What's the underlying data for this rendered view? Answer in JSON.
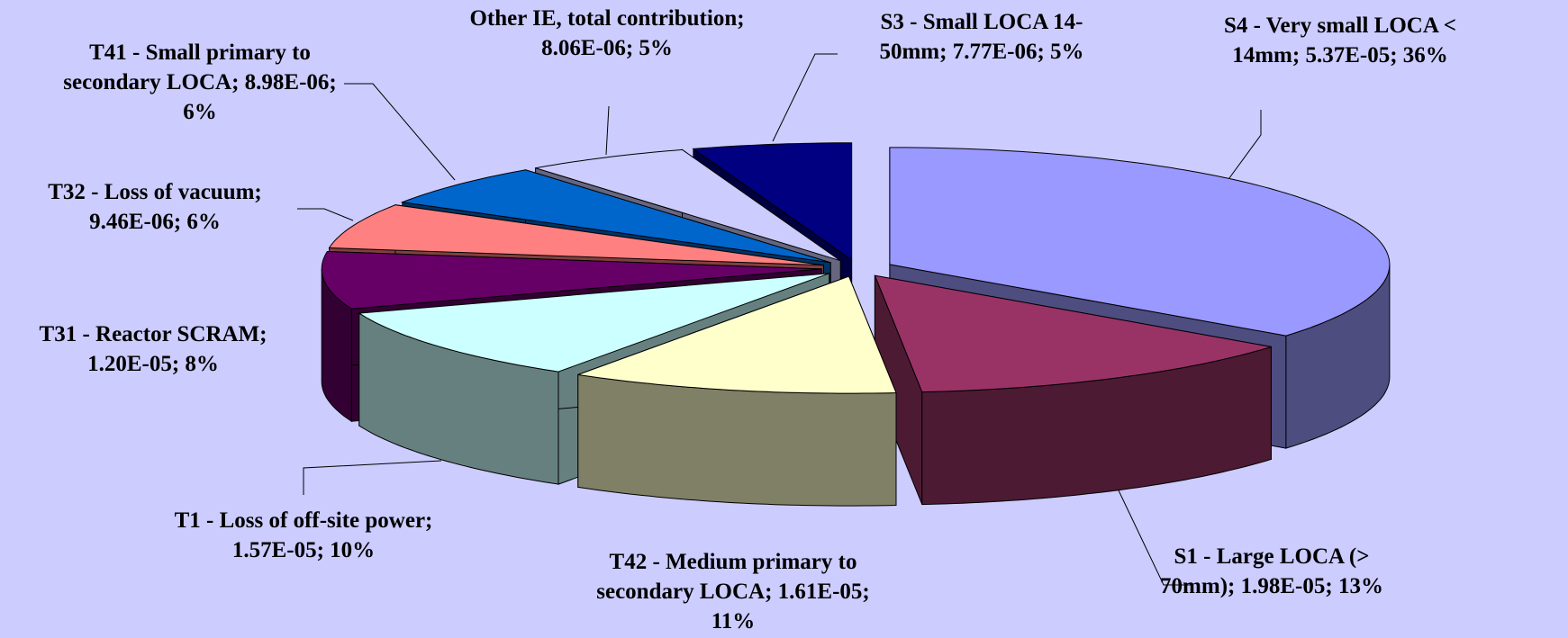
{
  "chart_data": {
    "type": "pie3d",
    "categories": [
      "S4 - Very small LOCA < 14mm;",
      "S1 - Large LOCA (> 70mm);",
      "T42 - Medium primary to secondary LOCA;",
      "T1 - Loss of off-site power;",
      "T31 - Reactor SCRAM;",
      "T32 - Loss of vacuum;",
      "T41 - Small primary to secondary LOCA;",
      "Other IE, total contribution;",
      "S3 - Small LOCA  14-50mm;"
    ],
    "values": [
      5.37e-05,
      1.98e-05,
      1.61e-05,
      1.57e-05,
      1.2e-05,
      9.46e-06,
      8.98e-06,
      8.06e-06,
      7.77e-06
    ],
    "value_labels": [
      "5.37E-05;",
      "1.98E-05;",
      "1.61E-05;",
      "1.57E-05;",
      "1.20E-05;",
      "9.46E-06;",
      "8.98E-06;",
      "8.06E-06;",
      "7.77E-06;"
    ],
    "percents": [
      36,
      13,
      11,
      10,
      8,
      6,
      6,
      5,
      5
    ],
    "percent_labels": [
      "36%",
      "13%",
      "11%",
      "10%",
      "8%",
      "6%",
      "6%",
      "5%",
      "5%"
    ],
    "colors": [
      "#9999ff",
      "#993366",
      "#ffffcc",
      "#ccffff",
      "#660066",
      "#ff8080",
      "#0066cc",
      "#ccccff",
      "#000080"
    ]
  }
}
